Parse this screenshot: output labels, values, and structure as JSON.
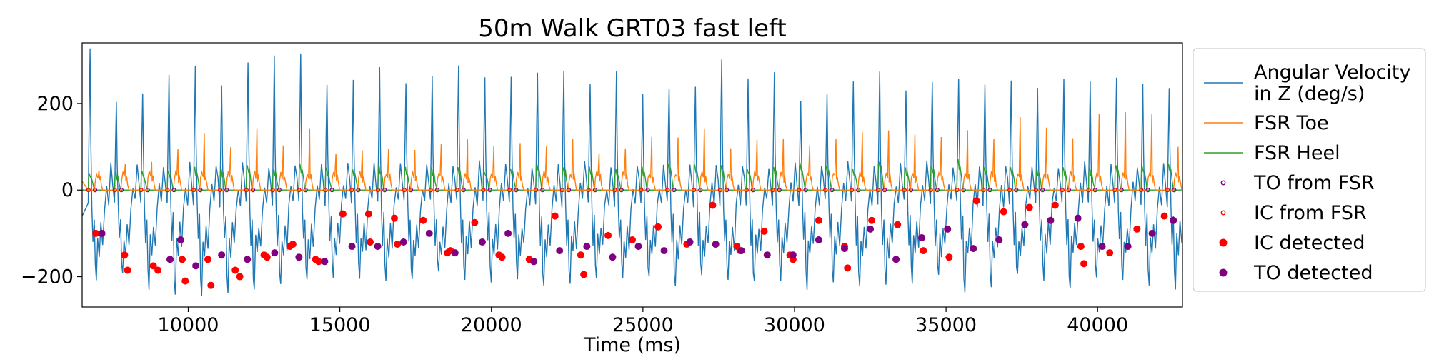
{
  "chart_data": {
    "type": "line",
    "title": "50m Walk GRT03 fast left",
    "xlabel": "Time (ms)",
    "ylabel": "",
    "xlim": [
      6500,
      42800
    ],
    "ylim": [
      -270,
      340
    ],
    "xticks": [
      10000,
      15000,
      20000,
      25000,
      30000,
      35000,
      40000
    ],
    "xtick_labels": [
      "10000",
      "15000",
      "20000",
      "25000",
      "30000",
      "35000",
      "40000"
    ],
    "yticks": [
      -200,
      0,
      200
    ],
    "ytick_labels": [
      "−200",
      "0",
      "200"
    ],
    "grid": false,
    "legend_position": "outside-right",
    "legend": [
      {
        "label_lines": [
          "Angular Velocity",
          " in Z (deg/s)"
        ],
        "kind": "line",
        "color": "#1f77b4"
      },
      {
        "label_lines": [
          "FSR Toe"
        ],
        "kind": "line",
        "color": "#ff7f0e"
      },
      {
        "label_lines": [
          "FSR Heel"
        ],
        "kind": "line",
        "color": "#2ca02c"
      },
      {
        "label_lines": [
          "TO from FSR"
        ],
        "kind": "open-marker",
        "color": "#800080"
      },
      {
        "label_lines": [
          "IC from FSR"
        ],
        "kind": "open-marker",
        "color": "#ff0000"
      },
      {
        "label_lines": [
          "IC detected"
        ],
        "kind": "filled-marker",
        "color": "#ff0000"
      },
      {
        "label_lines": [
          "TO detected"
        ],
        "kind": "filled-marker",
        "color": "#800080"
      }
    ],
    "gait": {
      "stride_count": 42,
      "first_stride_ms": 6700,
      "last_stride_ms": 42300
    },
    "series": [
      {
        "name": "Angular Velocity in Z (deg/s)",
        "color": "#1f77b4",
        "peaks": [
          335,
          210,
          230,
          275,
          280,
          240,
          300,
          305,
          320,
          240,
          245,
          290,
          250,
          265,
          290,
          265,
          270,
          265,
          275,
          255,
          275,
          215,
          240,
          240,
          300,
          255,
          270,
          205,
          225,
          260,
          270,
          235,
          245,
          265,
          245,
          250,
          230,
          250,
          245,
          255,
          245,
          240
        ],
        "troughs": [
          -210,
          -200,
          -225,
          -240,
          -245,
          -240,
          -230,
          -215,
          -200,
          -210,
          -205,
          -200,
          -205,
          -195,
          -200,
          -210,
          -205,
          -220,
          -215,
          -200,
          -195,
          -205,
          -220,
          -205,
          -205,
          -215,
          -200,
          -225,
          -210,
          -220,
          -215,
          -210,
          -205,
          -240,
          -220,
          -200,
          -205,
          -230,
          -210,
          -200,
          -215,
          -225
        ],
        "baseline": -20
      },
      {
        "name": "FSR Toe",
        "color": "#ff7f0e",
        "peaks": [
          50,
          60,
          70,
          95,
          130,
          95,
          140,
          100,
          145,
          80,
          90,
          100,
          90,
          110,
          120,
          105,
          110,
          100,
          120,
          90,
          100,
          120,
          125,
          140,
          95,
          115,
          120,
          100,
          120,
          130,
          140,
          130,
          125,
          135,
          120,
          170,
          145,
          120,
          180,
          175,
          175,
          100
        ]
      },
      {
        "name": "FSR Heel",
        "color": "#2ca02c",
        "peaks": [
          35,
          40,
          40,
          45,
          50,
          50,
          55,
          45,
          60,
          50,
          45,
          55,
          50,
          50,
          55,
          45,
          50,
          60,
          55,
          55,
          45,
          50,
          60,
          60,
          55,
          50,
          55,
          60,
          55,
          50,
          65,
          50,
          55,
          70,
          55,
          55,
          50,
          55,
          50,
          55,
          55,
          60
        ]
      },
      {
        "name": "TO from FSR",
        "marker": "open",
        "color": "#800080",
        "y_value": 0
      },
      {
        "name": "IC from FSR",
        "marker": "open",
        "color": "#ff0000",
        "y_value": 0
      },
      {
        "name": "IC detected",
        "marker": "filled",
        "color": "#ff0000",
        "x": [
          6950,
          7900,
          8000,
          8850,
          9000,
          9800,
          9900,
          10650,
          10750,
          11550,
          11700,
          12500,
          12600,
          13350,
          13450,
          14200,
          14300,
          15100,
          15950,
          16000,
          16800,
          16900,
          17750,
          18550,
          18650,
          19450,
          20250,
          20350,
          21250,
          22100,
          22950,
          23050,
          23850,
          24650,
          25500,
          26450,
          27300,
          28100,
          28200,
          29000,
          29850,
          29950,
          30800,
          31650,
          31750,
          32550,
          33400,
          34250,
          35100,
          36000,
          36900,
          37750,
          38600,
          39450,
          39550,
          40400,
          41300,
          42200
        ],
        "y": [
          -100,
          -150,
          -185,
          -175,
          -185,
          -160,
          -210,
          -160,
          -220,
          -185,
          -200,
          -150,
          -155,
          -130,
          -125,
          -160,
          -165,
          -55,
          -55,
          -120,
          -65,
          -125,
          -70,
          -145,
          -140,
          -75,
          -150,
          -155,
          -160,
          -60,
          -150,
          -195,
          -105,
          -115,
          -85,
          -125,
          -35,
          -130,
          -140,
          -95,
          -150,
          -160,
          -70,
          -130,
          -180,
          -70,
          -80,
          -140,
          -155,
          -25,
          -50,
          -40,
          -35,
          -130,
          -170,
          -145,
          -90,
          -60
        ]
      },
      {
        "name": "TO detected",
        "marker": "filled",
        "color": "#800080",
        "x": [
          7150,
          9400,
          9750,
          10250,
          11100,
          11950,
          12850,
          13650,
          14500,
          15400,
          16250,
          17100,
          17950,
          18800,
          19700,
          20550,
          21400,
          22250,
          23150,
          24000,
          24850,
          25700,
          26550,
          27400,
          28250,
          29100,
          29950,
          30800,
          31650,
          32500,
          33350,
          34200,
          35050,
          35900,
          36750,
          37600,
          38450,
          39350,
          40150,
          41000,
          41800,
          42500
        ],
        "y": [
          -100,
          -160,
          -115,
          -175,
          -150,
          -160,
          -145,
          -155,
          -165,
          -130,
          -130,
          -120,
          -100,
          -145,
          -120,
          -100,
          -165,
          -140,
          -130,
          -155,
          -130,
          -140,
          -120,
          -125,
          -140,
          -150,
          -150,
          -115,
          -135,
          -90,
          -160,
          -110,
          -90,
          -135,
          -115,
          -80,
          -70,
          -65,
          -130,
          -130,
          -100,
          -70
        ]
      }
    ]
  }
}
